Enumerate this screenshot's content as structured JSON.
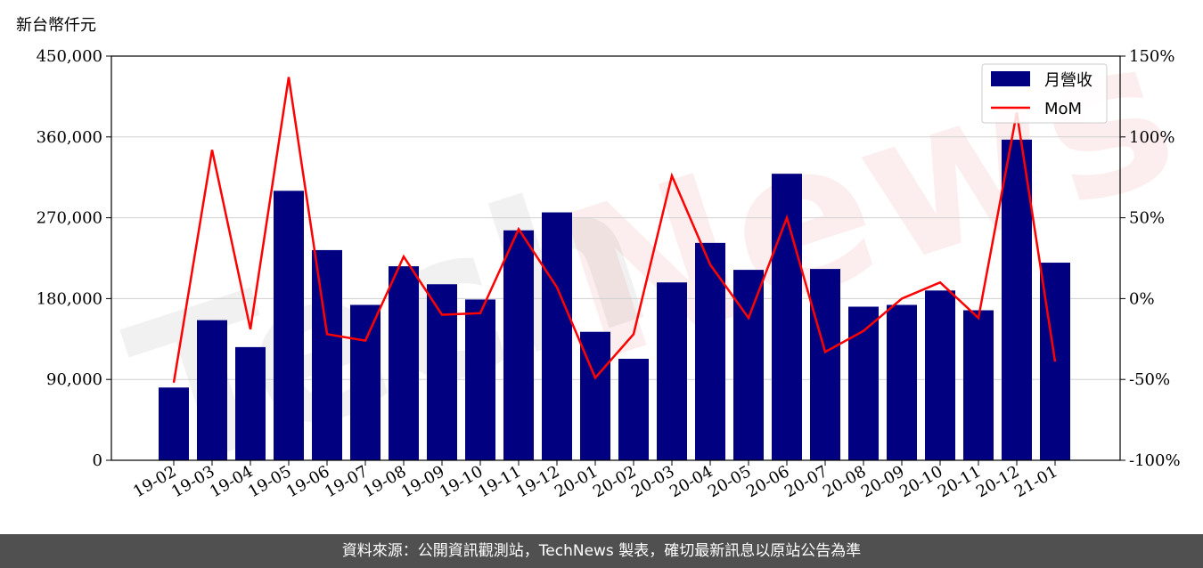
{
  "unit_label": "新台幣仟元",
  "footer_text": "資料來源：公開資訊觀測站，TechNews 製表，確切最新訊息以原站公告為準",
  "watermark": {
    "part1": "Tech",
    "part2": "News"
  },
  "colors": {
    "bar": "#000080",
    "line": "#ff0000",
    "grid": "#d0d0d0",
    "footer_bg": "#505050"
  },
  "chart_data": {
    "type": "bar",
    "categories": [
      "19-02",
      "19-03",
      "19-04",
      "19-05",
      "19-06",
      "19-07",
      "19-08",
      "19-09",
      "19-10",
      "19-11",
      "19-12",
      "20-01",
      "20-02",
      "20-03",
      "20-04",
      "20-05",
      "20-06",
      "20-07",
      "20-08",
      "20-09",
      "20-10",
      "20-11",
      "20-12",
      "21-01"
    ],
    "series": [
      {
        "name": "月營收",
        "type": "bar",
        "axis": "left",
        "values": [
          81000,
          156000,
          126000,
          300000,
          234000,
          173000,
          216000,
          196000,
          179000,
          256000,
          276000,
          143000,
          113000,
          198000,
          242000,
          212000,
          319000,
          213000,
          171000,
          173000,
          189000,
          167000,
          357000,
          220000
        ]
      },
      {
        "name": "MoM",
        "type": "line",
        "axis": "right",
        "values": [
          -52,
          92,
          -19,
          137,
          -22,
          -26,
          26,
          -10,
          -9,
          43,
          7,
          -49,
          -22,
          76,
          21,
          -12,
          50,
          -33,
          -20,
          0,
          10,
          -12,
          115,
          -39
        ]
      }
    ],
    "left_axis": {
      "ylim": [
        0,
        450000
      ],
      "ticks": [
        "0",
        "90,000",
        "180,000",
        "270,000",
        "360,000",
        "450,000"
      ],
      "tick_values": [
        0,
        90000,
        180000,
        270000,
        360000,
        450000
      ]
    },
    "right_axis": {
      "ylim": [
        -100,
        150
      ],
      "ticks": [
        "-100%",
        "-50%",
        "0%",
        "50%",
        "100%",
        "150%"
      ],
      "tick_values": [
        -100,
        -50,
        0,
        50,
        100,
        150
      ]
    },
    "grid": true,
    "legend_position": "top-right"
  }
}
